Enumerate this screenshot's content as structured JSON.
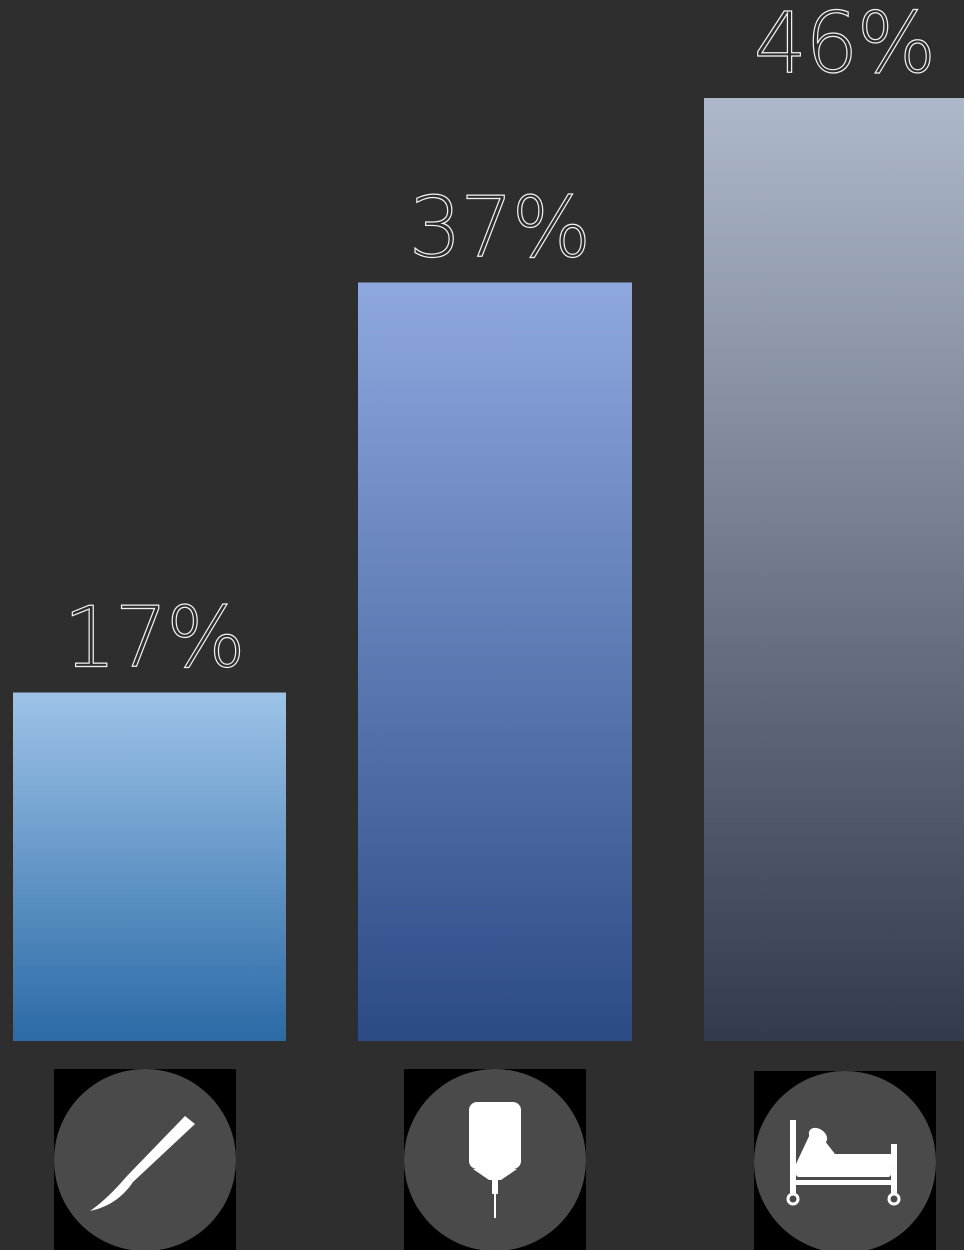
{
  "chart_data": {
    "type": "bar",
    "categories": [
      "surgery",
      "iv-bag",
      "hospital-bed"
    ],
    "values": [
      17,
      37,
      46
    ],
    "value_labels": [
      "17%",
      "37%",
      "46%"
    ],
    "unit": "%",
    "ylim": [
      0,
      50
    ],
    "grid": false,
    "legend": "none",
    "category_icons": [
      "scalpel-icon",
      "iv-bag-icon",
      "hospital-bed-icon"
    ],
    "bar_gradients": [
      [
        "#9dc3e8",
        "#2b6aa6"
      ],
      [
        "#8ea8df",
        "#2c4a86"
      ],
      [
        "#aeb8cb",
        "#323a4d"
      ]
    ]
  },
  "colors": {
    "background": "#2f2e2f",
    "label": "#f2f2f2",
    "icon_circle": "#4a4a4a",
    "icon_box": "#000000",
    "icon_fg": "#ffffff"
  }
}
